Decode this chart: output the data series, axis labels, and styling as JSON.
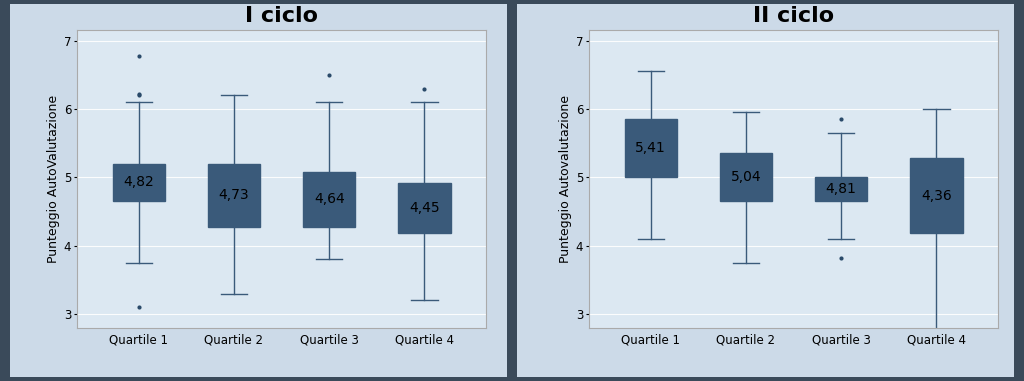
{
  "chart1": {
    "title": "I ciclo",
    "ylabel": "Punteggio AutoValutazione",
    "categories": [
      "Quartile 1",
      "Quartile 2",
      "Quartile 3",
      "Quartile 4"
    ],
    "medians": [
      4.82,
      4.73,
      4.64,
      4.45
    ],
    "q1": [
      4.65,
      4.28,
      4.28,
      4.18
    ],
    "q3": [
      5.2,
      5.2,
      5.08,
      4.92
    ],
    "whislo": [
      3.75,
      3.3,
      3.8,
      3.2
    ],
    "whishi": [
      6.1,
      6.2,
      6.1,
      6.1
    ],
    "fliers": [
      [
        3.1,
        6.2,
        6.22,
        6.78
      ],
      [],
      [
        6.5
      ],
      [
        6.3
      ]
    ]
  },
  "chart2": {
    "title": "II ciclo",
    "ylabel": "Punteggio Autovalutazione",
    "categories": [
      "Quartile 1",
      "Quartile 2",
      "Quartile 3",
      "Quartile 4"
    ],
    "medians": [
      5.41,
      5.04,
      4.81,
      4.36
    ],
    "q1": [
      5.0,
      4.65,
      4.65,
      4.18
    ],
    "q3": [
      5.85,
      5.35,
      5.0,
      5.28
    ],
    "whislo": [
      4.1,
      3.75,
      4.1,
      2.75
    ],
    "whishi": [
      6.55,
      5.95,
      5.65,
      6.0
    ],
    "fliers": [
      [],
      [],
      [
        3.82,
        5.85
      ],
      []
    ]
  },
  "box_facecolor": "#8fa8c0",
  "box_edgecolor": "#3a5a7a",
  "median_color": "#3a5a7a",
  "whisker_color": "#3a5a7a",
  "cap_color": "#3a5a7a",
  "flier_color": "#2a4a6a",
  "plot_bg_color": "#dce8f2",
  "panel_bg_color": "#ccdae8",
  "outer_bg": "#3a4a5a",
  "ylim": [
    2.8,
    7.15
  ],
  "yticks": [
    3,
    4,
    5,
    6,
    7
  ],
  "title_fontsize": 16,
  "label_fontsize": 9,
  "tick_fontsize": 8.5,
  "median_label_fontsize": 10
}
